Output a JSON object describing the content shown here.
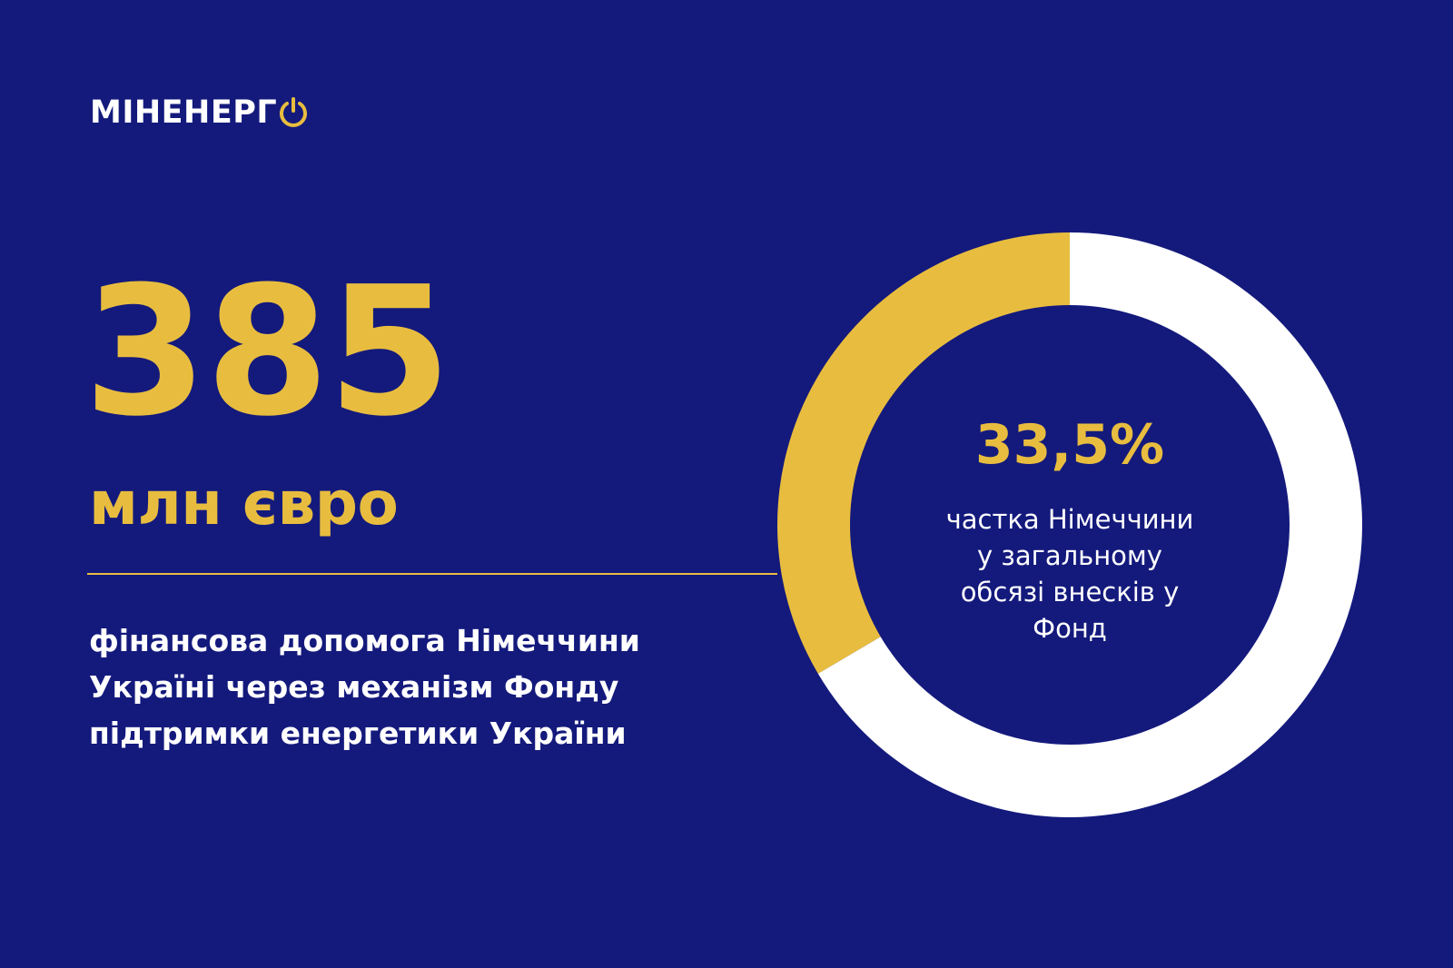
{
  "logo": {
    "text": "МІНЕНЕРГ",
    "mark_icon": "power-button-icon",
    "mark_color": "#e8bd3f"
  },
  "headline": {
    "value": "385",
    "unit": "млн євро",
    "description": "фінансова допомога Німеччини Україні через механізм Фонду підтримки енергетики України"
  },
  "colors": {
    "background": "#141a7c",
    "accent": "#e8bd3f",
    "text": "#ffffff"
  },
  "chart_data": {
    "type": "pie",
    "variant": "donut",
    "center_label": "33,5%",
    "center_caption": "частка Німеччини у загальному обсязі внесків у Фонд",
    "slices": [
      {
        "value": 33.5,
        "color": "#e8bd3f"
      },
      {
        "value": 66.5,
        "color": "#ffffff"
      }
    ],
    "start_angle_deg": 0,
    "direction": "counterclockwise"
  }
}
